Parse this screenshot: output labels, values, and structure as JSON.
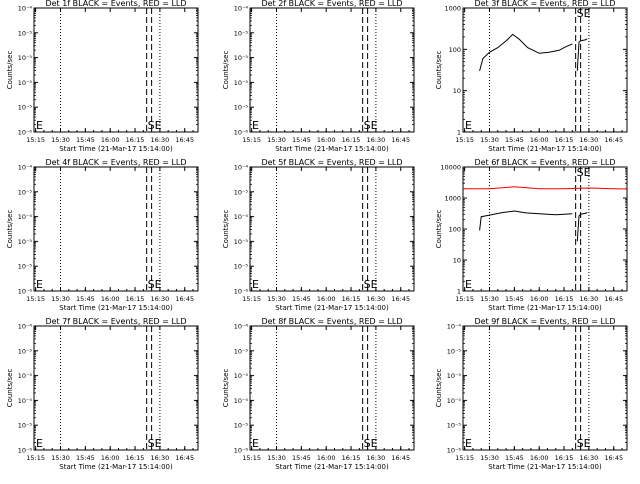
{
  "colors": {
    "events": "#000000",
    "lld": "#ff0000",
    "background": "#ffffff"
  },
  "chart_data": [
    {
      "type": "line",
      "title": "Det 1f BLACK = Events, RED = LLD",
      "xlabel": "Start Time (21-Mar-17 15:14:00)",
      "ylabel": "Counts/sec",
      "xticks": [
        "15:15",
        "15:30",
        "15:45",
        "16:00",
        "16:15",
        "16:30",
        "16:45"
      ],
      "xlim": [
        "15:14",
        "16:53"
      ],
      "yscale": "log",
      "ylim": [
        1e-06,
        0.0001
      ],
      "yticks": [
        "10⁻⁶",
        "10⁻⁵",
        "10⁻⁵",
        "10⁻⁵",
        "10⁻⁵",
        "10⁻⁴"
      ],
      "markers": [
        "S",
        "E"
      ],
      "series": []
    },
    {
      "type": "line",
      "title": "Det 2f BLACK = Events, RED = LLD",
      "xlabel": "Start Time (21-Mar-17 15:14:00)",
      "ylabel": "Counts/sec",
      "xticks": [
        "15:15",
        "15:30",
        "15:45",
        "16:00",
        "16:15",
        "16:30",
        "16:45"
      ],
      "xlim": [
        "15:14",
        "16:53"
      ],
      "yscale": "log",
      "ylim": [
        1e-06,
        0.0001
      ],
      "yticks": [
        "10⁻⁶",
        "10⁻⁵",
        "10⁻⁵",
        "10⁻⁵",
        "10⁻⁵",
        "10⁻⁴"
      ],
      "markers": [
        "S",
        "E"
      ],
      "series": []
    },
    {
      "type": "line",
      "title": "Det 3f BLACK = Events, RED = LLD",
      "xlabel": "Start Time (21-Mar-17 15:14:00)",
      "ylabel": "Counts/sec",
      "xticks": [
        "15:15",
        "15:30",
        "15:45",
        "16:00",
        "16:15",
        "16:30",
        "16:45"
      ],
      "xlim": [
        "15:14",
        "16:53"
      ],
      "yscale": "log",
      "ylim": [
        1,
        1000
      ],
      "yticks": [
        "1",
        "10",
        "100",
        "1000"
      ],
      "markers": [
        "S",
        "E"
      ],
      "series": [
        {
          "color": "#000000",
          "segments": [
            {
              "x": [
                "15:24",
                "15:26",
                "15:30",
                "15:35",
                "15:40",
                "15:44",
                "15:48",
                "15:53",
                "16:00",
                "16:06",
                "16:12",
                "16:16",
                "16:20"
              ],
              "y": [
                30,
                60,
                85,
                110,
                160,
                230,
                175,
                110,
                80,
                85,
                95,
                115,
                135
              ]
            },
            {
              "x": [
                "16:23",
                "16:24",
                "16:25",
                "16:28",
                "16:29"
              ],
              "y": [
                30,
                150,
                160,
                170,
                180
              ]
            }
          ]
        }
      ]
    },
    {
      "type": "line",
      "title": "Det 4f BLACK = Events, RED = LLD",
      "xlabel": "Start Time (21-Mar-17 15:14:00)",
      "ylabel": "Counts/sec",
      "xticks": [
        "15:15",
        "15:30",
        "15:45",
        "16:00",
        "16:15",
        "16:30",
        "16:45"
      ],
      "xlim": [
        "15:14",
        "16:53"
      ],
      "yscale": "log",
      "ylim": [
        1e-06,
        0.0001
      ],
      "yticks": [
        "10⁻⁶",
        "10⁻⁵",
        "10⁻⁵",
        "10⁻⁵",
        "10⁻⁵",
        "10⁻⁴"
      ],
      "markers": [
        "S",
        "E"
      ],
      "series": []
    },
    {
      "type": "line",
      "title": "Det 5f BLACK = Events, RED = LLD",
      "xlabel": "Start Time (21-Mar-17 15:14:00)",
      "ylabel": "Counts/sec",
      "xticks": [
        "15:15",
        "15:30",
        "15:45",
        "16:00",
        "16:15",
        "16:30",
        "16:45"
      ],
      "xlim": [
        "15:14",
        "16:53"
      ],
      "yscale": "log",
      "ylim": [
        1e-06,
        0.0001
      ],
      "yticks": [
        "10⁻⁶",
        "10⁻⁵",
        "10⁻⁵",
        "10⁻⁵",
        "10⁻⁵",
        "10⁻⁴"
      ],
      "markers": [
        "S",
        "E"
      ],
      "series": []
    },
    {
      "type": "line",
      "title": "Det 6f BLACK = Events, RED = LLD",
      "xlabel": "Start Time (21-Mar-17 15:14:00)",
      "ylabel": "Counts/sec",
      "xticks": [
        "15:15",
        "15:30",
        "15:45",
        "16:00",
        "16:15",
        "16:30",
        "16:45"
      ],
      "xlim": [
        "15:14",
        "16:53"
      ],
      "yscale": "log",
      "ylim": [
        1,
        10000
      ],
      "yticks": [
        "1",
        "10",
        "100",
        "1000",
        "10000"
      ],
      "markers": [
        "S",
        "E"
      ],
      "series": [
        {
          "color": "#ff0000",
          "segments": [
            {
              "x": [
                "15:14",
                "15:30",
                "15:45",
                "16:00",
                "16:15",
                "16:30",
                "16:45",
                "16:53"
              ],
              "y": [
                2000,
                2000,
                2300,
                2000,
                2000,
                2100,
                2000,
                1950
              ]
            }
          ]
        },
        {
          "color": "#000000",
          "segments": [
            {
              "x": [
                "15:24",
                "15:25",
                "15:30",
                "15:38",
                "15:45",
                "15:52",
                "16:00",
                "16:10",
                "16:20"
              ],
              "y": [
                90,
                250,
                280,
                340,
                380,
                330,
                310,
                290,
                310
              ]
            },
            {
              "x": [
                "16:23",
                "16:24",
                "16:25",
                "16:28",
                "16:29"
              ],
              "y": [
                40,
                260,
                300,
                320,
                340
              ]
            }
          ]
        }
      ]
    },
    {
      "type": "line",
      "title": "Det 7f BLACK = Events, RED = LLD",
      "xlabel": "Start Time (21-Mar-17 15:14:00)",
      "ylabel": "Counts/sec",
      "xticks": [
        "15:15",
        "15:30",
        "15:45",
        "16:00",
        "16:15",
        "16:30",
        "16:45"
      ],
      "xlim": [
        "15:14",
        "16:53"
      ],
      "yscale": "log",
      "ylim": [
        1e-06,
        0.0001
      ],
      "yticks": [
        "10⁻⁶",
        "10⁻⁵",
        "10⁻⁵",
        "10⁻⁵",
        "10⁻⁵",
        "10⁻⁴"
      ],
      "markers": [
        "S",
        "E"
      ],
      "series": []
    },
    {
      "type": "line",
      "title": "Det 8f BLACK = Events, RED = LLD",
      "xlabel": "Start Time (21-Mar-17 15:14:00)",
      "ylabel": "Counts/sec",
      "xticks": [
        "15:15",
        "15:30",
        "15:45",
        "16:00",
        "16:15",
        "16:30",
        "16:45"
      ],
      "xlim": [
        "15:14",
        "16:53"
      ],
      "yscale": "log",
      "ylim": [
        1e-06,
        0.0001
      ],
      "yticks": [
        "10⁻⁶",
        "10⁻⁵",
        "10⁻⁵",
        "10⁻⁵",
        "10⁻⁵",
        "10⁻⁴"
      ],
      "markers": [
        "S",
        "E"
      ],
      "series": []
    },
    {
      "type": "line",
      "title": "Det 9f BLACK = Events, RED = LLD",
      "xlabel": "Start Time (21-Mar-17 15:14:00)",
      "ylabel": "Counts/sec",
      "xticks": [
        "15:15",
        "15:30",
        "15:45",
        "16:00",
        "16:15",
        "16:30",
        "16:45"
      ],
      "xlim": [
        "15:14",
        "16:53"
      ],
      "yscale": "log",
      "ylim": [
        1e-06,
        0.0001
      ],
      "yticks": [
        "10⁻⁶",
        "10⁻⁵",
        "10⁻⁵",
        "10⁻⁵",
        "10⁻⁵",
        "10⁻⁴"
      ],
      "markers": [
        "S",
        "E"
      ],
      "series": []
    }
  ]
}
